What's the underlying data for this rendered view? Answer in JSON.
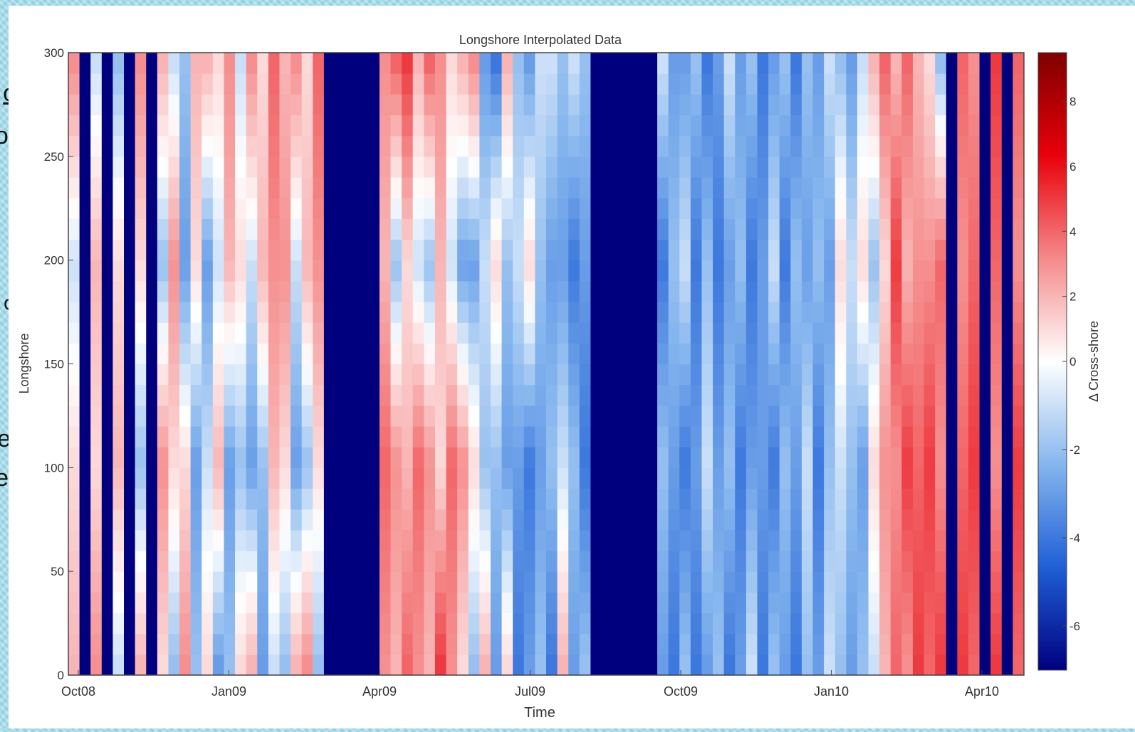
{
  "slide_text_fragments": [
    "on",
    "ore",
    "or",
    "ed",
    "e"
  ],
  "chart_data": {
    "type": "heatmap",
    "title": "Longshore Interpolated Data",
    "xlabel": "Time",
    "ylabel": "Longshore",
    "x_ticks": [
      "Oct08",
      "Jan09",
      "Apr09",
      "Jul09",
      "Oct09",
      "Jan10",
      "Apr10"
    ],
    "y_ticks": [
      0,
      50,
      100,
      150,
      200,
      250,
      300
    ],
    "ylim": [
      0,
      300
    ],
    "colorbar": {
      "label": "Δ Cross-shore",
      "ticks": [
        -6,
        -4,
        -2,
        0,
        2,
        4,
        6,
        8
      ],
      "range": [
        -7,
        9.5
      ],
      "colormap": [
        "#00007f",
        "#1f5fd6",
        "#86b6ee",
        "#ffffff",
        "#f58a8a",
        "#e8000b",
        "#7f0000"
      ]
    },
    "columns": [
      {
        "kind": "pattern",
        "values": [
          2,
          1,
          -1,
          3
        ]
      },
      {
        "kind": "dark"
      },
      {
        "kind": "pattern",
        "values": [
          3,
          1,
          2,
          -1
        ]
      },
      {
        "kind": "dark"
      },
      {
        "kind": "pattern",
        "values": [
          -1,
          2,
          1,
          -2
        ]
      },
      {
        "kind": "dark"
      },
      {
        "kind": "pattern",
        "values": [
          2,
          -2,
          1,
          3
        ]
      },
      {
        "kind": "dark"
      },
      {
        "kind": "pattern",
        "values": [
          1,
          3,
          -2,
          2
        ]
      },
      {
        "kind": "pattern",
        "values": [
          -2,
          1,
          3,
          -1
        ]
      },
      {
        "kind": "pattern",
        "values": [
          3,
          1,
          -3,
          -2
        ]
      },
      {
        "kind": "pattern",
        "values": [
          -2,
          -3,
          1,
          2
        ]
      },
      {
        "kind": "pattern",
        "values": [
          1,
          -1,
          -3,
          2
        ]
      },
      {
        "kind": "pattern",
        "values": [
          -3,
          2,
          -1,
          1
        ]
      },
      {
        "kind": "pattern",
        "values": [
          -2,
          -3,
          2,
          3
        ]
      },
      {
        "kind": "pattern",
        "values": [
          1,
          -2,
          1,
          -1
        ]
      },
      {
        "kind": "pattern",
        "values": [
          2,
          -3,
          -1,
          3
        ]
      },
      {
        "kind": "pattern",
        "values": [
          -3,
          -2,
          2,
          1
        ]
      },
      {
        "kind": "pattern",
        "values": [
          -1,
          2,
          3,
          4
        ]
      },
      {
        "kind": "pattern",
        "values": [
          -2,
          1,
          3,
          2
        ]
      },
      {
        "kind": "pattern",
        "values": [
          2,
          -3,
          -1,
          3
        ]
      },
      {
        "kind": "pattern",
        "values": [
          3,
          -2,
          2,
          1
        ]
      },
      {
        "kind": "pattern",
        "values": [
          -2,
          1,
          3,
          4
        ]
      },
      {
        "kind": "dark"
      },
      {
        "kind": "dark"
      },
      {
        "kind": "dark"
      },
      {
        "kind": "dark"
      },
      {
        "kind": "dark"
      },
      {
        "kind": "pattern",
        "values": [
          3,
          4,
          2,
          3
        ]
      },
      {
        "kind": "pattern",
        "values": [
          2,
          3,
          -2,
          4
        ]
      },
      {
        "kind": "pattern",
        "values": [
          4,
          2,
          1,
          5
        ]
      },
      {
        "kind": "pattern",
        "values": [
          3,
          4,
          -1,
          2
        ]
      },
      {
        "kind": "pattern",
        "values": [
          2,
          3,
          -2,
          4
        ]
      },
      {
        "kind": "pattern",
        "values": [
          5,
          1,
          2,
          3
        ]
      },
      {
        "kind": "pattern",
        "values": [
          3,
          4,
          -1,
          1
        ]
      },
      {
        "kind": "pattern",
        "values": [
          1,
          3,
          -3,
          2
        ]
      },
      {
        "kind": "pattern",
        "values": [
          -2,
          1,
          -3,
          3
        ]
      },
      {
        "kind": "pattern",
        "values": [
          2,
          -2,
          -1,
          -3
        ]
      },
      {
        "kind": "pattern",
        "values": [
          -3,
          -2,
          1,
          -4
        ]
      },
      {
        "kind": "pattern",
        "values": [
          1,
          -3,
          -2,
          2
        ]
      },
      {
        "kind": "pattern",
        "values": [
          -4,
          -3,
          -1,
          -2
        ]
      },
      {
        "kind": "pattern",
        "values": [
          -3,
          -4,
          1,
          -3
        ]
      },
      {
        "kind": "pattern",
        "values": [
          -2,
          -3,
          -2,
          -1
        ]
      },
      {
        "kind": "pattern",
        "values": [
          -4,
          -2,
          -3,
          -1
        ]
      },
      {
        "kind": "pattern",
        "values": [
          2,
          -1,
          -3,
          -2
        ]
      },
      {
        "kind": "pattern",
        "values": [
          -3,
          -2,
          -4,
          -1
        ]
      },
      {
        "kind": "pattern",
        "values": [
          -2,
          -4,
          -3,
          -2
        ]
      },
      {
        "kind": "dark"
      },
      {
        "kind": "dark"
      },
      {
        "kind": "dark"
      },
      {
        "kind": "dark"
      },
      {
        "kind": "dark"
      },
      {
        "kind": "dark"
      },
      {
        "kind": "pattern",
        "values": [
          -3,
          -2,
          -4,
          -1
        ]
      },
      {
        "kind": "pattern",
        "values": [
          -4,
          -3,
          -2,
          -3
        ]
      },
      {
        "kind": "pattern",
        "values": [
          -2,
          -4,
          -1,
          -3
        ]
      },
      {
        "kind": "pattern",
        "values": [
          -4,
          -3,
          -4,
          -2
        ]
      },
      {
        "kind": "pattern",
        "values": [
          -3,
          -1,
          -2,
          -4
        ]
      },
      {
        "kind": "pattern",
        "values": [
          -2,
          -3,
          -4,
          -3
        ]
      },
      {
        "kind": "pattern",
        "values": [
          -4,
          -2,
          -3,
          -1
        ]
      },
      {
        "kind": "pattern",
        "values": [
          -3,
          -4,
          -2,
          -3
        ]
      },
      {
        "kind": "pattern",
        "values": [
          -1,
          -3,
          -4,
          -2
        ]
      },
      {
        "kind": "pattern",
        "values": [
          -4,
          -3,
          -3,
          -4
        ]
      },
      {
        "kind": "pattern",
        "values": [
          -2,
          -4,
          -1,
          -3
        ]
      },
      {
        "kind": "pattern",
        "values": [
          -3,
          -2,
          -4,
          -2
        ]
      },
      {
        "kind": "pattern",
        "values": [
          -4,
          -3,
          -2,
          -4
        ]
      },
      {
        "kind": "pattern",
        "values": [
          -2,
          -1,
          -3,
          -2
        ]
      },
      {
        "kind": "pattern",
        "values": [
          -3,
          -4,
          -2,
          -3
        ]
      },
      {
        "kind": "pattern",
        "values": [
          -1,
          -2,
          -3,
          -1
        ]
      },
      {
        "kind": "pattern",
        "values": [
          -2,
          -1,
          1,
          -2
        ]
      },
      {
        "kind": "pattern",
        "values": [
          -3,
          -2,
          -1,
          -3
        ]
      },
      {
        "kind": "pattern",
        "values": [
          -2,
          -3,
          1,
          -1
        ]
      },
      {
        "kind": "pattern",
        "values": [
          -1,
          1,
          -2,
          2
        ]
      },
      {
        "kind": "pattern",
        "values": [
          2,
          3,
          1,
          4
        ]
      },
      {
        "kind": "pattern",
        "values": [
          4,
          3,
          5,
          2
        ]
      },
      {
        "kind": "pattern",
        "values": [
          3,
          5,
          2,
          4
        ]
      },
      {
        "kind": "pattern",
        "values": [
          5,
          4,
          3,
          2
        ]
      },
      {
        "kind": "pattern",
        "values": [
          4,
          5,
          3,
          1
        ]
      },
      {
        "kind": "pattern",
        "values": [
          5,
          3,
          4,
          -2
        ]
      },
      {
        "kind": "dark"
      },
      {
        "kind": "pattern",
        "values": [
          5,
          4,
          3,
          4
        ]
      },
      {
        "kind": "pattern",
        "values": [
          4,
          5,
          4,
          3
        ]
      },
      {
        "kind": "dark"
      },
      {
        "kind": "pattern",
        "values": [
          5,
          3,
          4,
          5
        ]
      },
      {
        "kind": "dark"
      },
      {
        "kind": "pattern",
        "values": [
          4,
          5,
          3,
          4
        ]
      }
    ]
  }
}
